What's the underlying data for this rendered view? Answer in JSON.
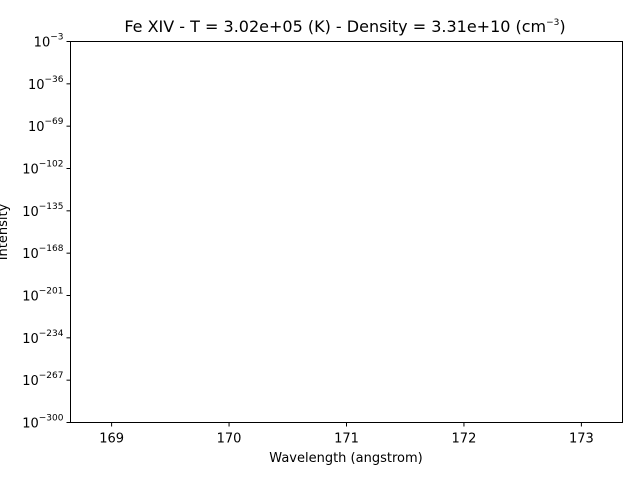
{
  "chart_data": {
    "type": "line",
    "title": {
      "prefix": "Fe XIV -  T = ",
      "temperature": "3.02e+05",
      "temp_unit": "(K)",
      "mid": " -  Density = ",
      "density": "3.31e+10",
      "density_unit_open": "(cm",
      "density_unit_exp": "−3",
      "density_unit_close": ")"
    },
    "xlabel": "Wavelength (angstrom)",
    "ylabel": "Intensity",
    "xlim": [
      168.65,
      173.35
    ],
    "ylim_log10": [
      -300,
      -3
    ],
    "yscale": "log",
    "grid": false,
    "x_ticks": [
      169,
      170,
      171,
      172,
      173
    ],
    "y_ticks": [
      {
        "base": "10",
        "exp": "−3",
        "log": -3
      },
      {
        "base": "10",
        "exp": "−36",
        "log": -36
      },
      {
        "base": "10",
        "exp": "−69",
        "log": -69
      },
      {
        "base": "10",
        "exp": "−102",
        "log": -102
      },
      {
        "base": "10",
        "exp": "−135",
        "log": -135
      },
      {
        "base": "10",
        "exp": "−168",
        "log": -168
      },
      {
        "base": "10",
        "exp": "−201",
        "log": -201
      },
      {
        "base": "10",
        "exp": "−234",
        "log": -234
      },
      {
        "base": "10",
        "exp": "−267",
        "log": -267
      },
      {
        "base": "10",
        "exp": "−300",
        "log": -300
      }
    ],
    "series": []
  }
}
